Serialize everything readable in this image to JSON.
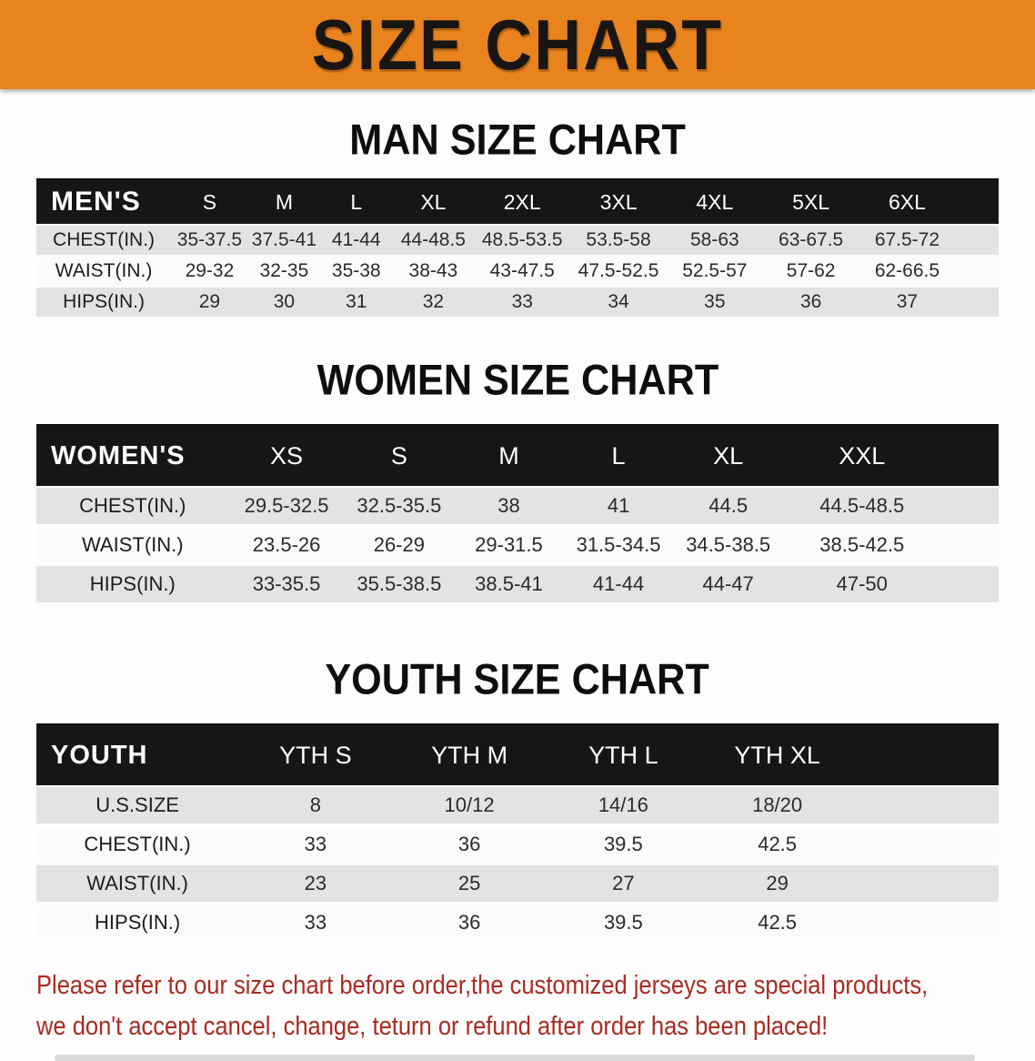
{
  "banner": {
    "title": "SIZE CHART",
    "bg_color": "#e8831e",
    "text_color": "#191512"
  },
  "colors": {
    "table_header_bg": "#161616",
    "row_gray": "#e3e3e3",
    "row_white": "#fbfbfb",
    "footer_text": "#ab2a20"
  },
  "sections": [
    {
      "heading": "MAN SIZE CHART",
      "table": {
        "label_header": "MEN'S",
        "columns": [
          "S",
          "M",
          "L",
          "XL",
          "2XL",
          "3XL",
          "4XL",
          "5XL",
          "6XL"
        ],
        "rows": [
          {
            "label": "CHEST(IN.)",
            "values": [
              "35-37.5",
              "37.5-41",
              "41-44",
              "44-48.5",
              "48.5-53.5",
              "53.5-58",
              "58-63",
              "63-67.5",
              "67.5-72"
            ]
          },
          {
            "label": "WAIST(IN.)",
            "values": [
              "29-32",
              "32-35",
              "35-38",
              "38-43",
              "43-47.5",
              "47.5-52.5",
              "52.5-57",
              "57-62",
              "62-66.5"
            ]
          },
          {
            "label": "HIPS(IN.)",
            "values": [
              "29",
              "30",
              "31",
              "32",
              "33",
              "34",
              "35",
              "36",
              "37"
            ]
          }
        ]
      }
    },
    {
      "heading": "WOMEN SIZE CHART",
      "table": {
        "label_header": "WOMEN'S",
        "columns": [
          "XS",
          "S",
          "M",
          "L",
          "XL",
          "XXL"
        ],
        "rows": [
          {
            "label": "CHEST(IN.)",
            "values": [
              "29.5-32.5",
              "32.5-35.5",
              "38",
              "41",
              "44.5",
              "44.5-48.5"
            ]
          },
          {
            "label": "WAIST(IN.)",
            "values": [
              "23.5-26",
              "26-29",
              "29-31.5",
              "31.5-34.5",
              "34.5-38.5",
              "38.5-42.5"
            ]
          },
          {
            "label": "HIPS(IN.)",
            "values": [
              "33-35.5",
              "35.5-38.5",
              "38.5-41",
              "41-44",
              "44-47",
              "47-50"
            ]
          }
        ]
      }
    },
    {
      "heading": "YOUTH SIZE CHART",
      "table": {
        "label_header": "YOUTH",
        "columns": [
          "YTH S",
          "YTH M",
          "YTH L",
          "YTH XL"
        ],
        "rows": [
          {
            "label": "U.S.SIZE",
            "values": [
              "8",
              "10/12",
              "14/16",
              "18/20"
            ]
          },
          {
            "label": "CHEST(IN.)",
            "values": [
              "33",
              "36",
              "39.5",
              "42.5"
            ]
          },
          {
            "label": "WAIST(IN.)",
            "values": [
              "23",
              "25",
              "27",
              "29"
            ]
          },
          {
            "label": "HIPS(IN.)",
            "values": [
              "33",
              "36",
              "39.5",
              "42.5"
            ]
          }
        ]
      }
    }
  ],
  "footer_note": {
    "lines": [
      "Please refer to our size chart before order,the customized jerseys are special products,",
      "we don't accept cancel, change, teturn or refund after order has been placed!"
    ]
  }
}
